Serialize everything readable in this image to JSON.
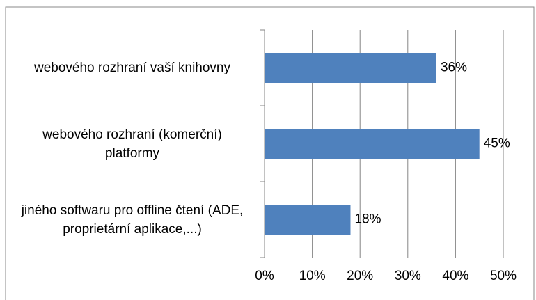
{
  "chart_data": {
    "type": "bar",
    "orientation": "horizontal",
    "categories": [
      "webového rozhraní vaší knihovny",
      "webového rozhraní (komerční) platformy",
      "jiného softwaru pro offline čtení (ADE, proprietární aplikace,...)"
    ],
    "values": [
      36,
      45,
      18
    ],
    "value_labels": [
      "36%",
      "45%",
      "18%"
    ],
    "color": "#4f81bd",
    "xlim": [
      0,
      50
    ],
    "xticks": [
      {
        "value": 0,
        "label": "0%"
      },
      {
        "value": 10,
        "label": "10%"
      },
      {
        "value": 20,
        "label": "20%"
      },
      {
        "value": 30,
        "label": "30%"
      },
      {
        "value": 40,
        "label": "40%"
      },
      {
        "value": 50,
        "label": "50%"
      }
    ],
    "grid": true
  }
}
